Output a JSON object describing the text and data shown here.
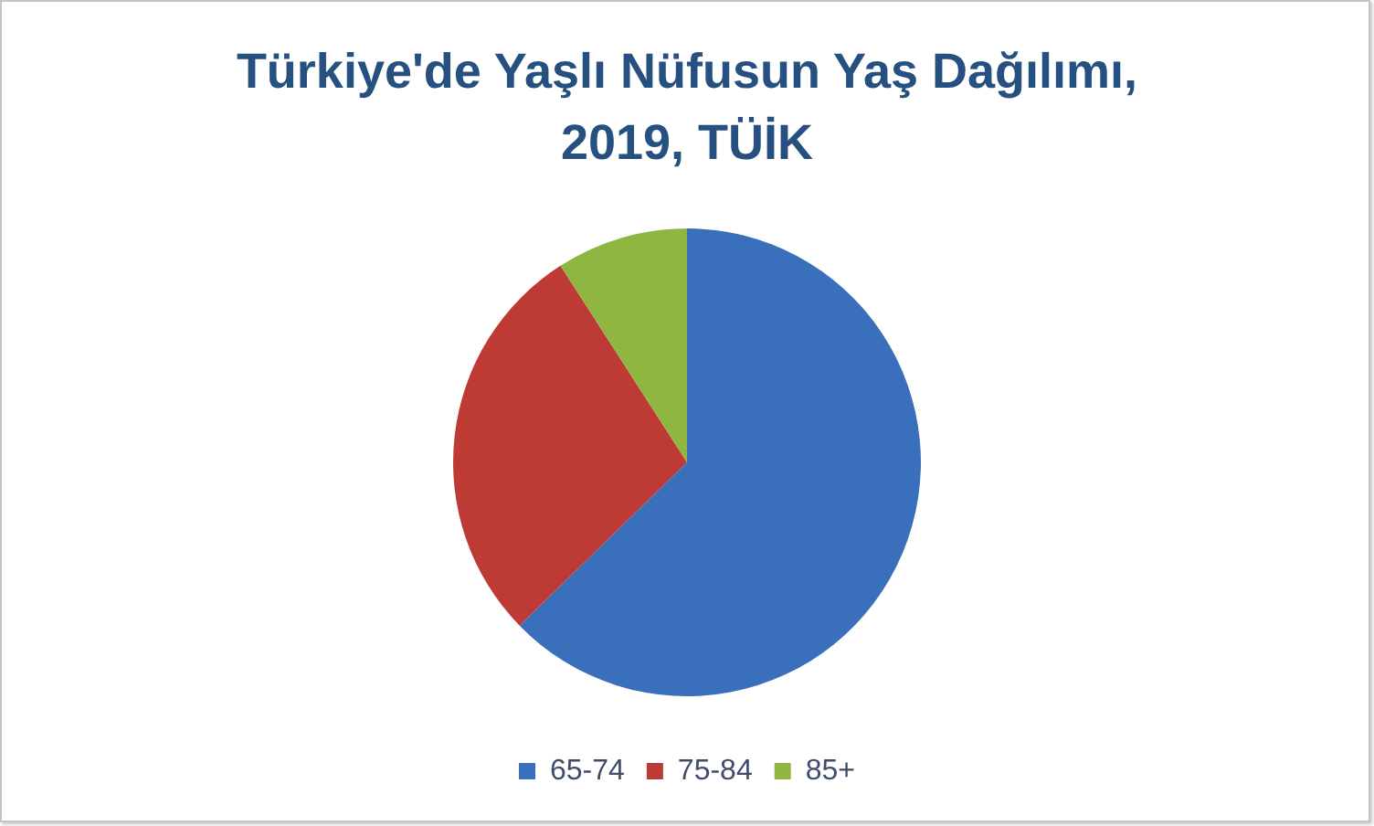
{
  "chart_data": {
    "type": "pie",
    "title": "Türkiye'de Yaşlı Nüfusun Yaş Dağılımı, 2019, TÜİK",
    "categories": [
      "65-74",
      "75-84",
      "85+"
    ],
    "values": [
      62.7,
      28.2,
      9.1
    ],
    "colors": [
      "#3a70bb",
      "#be3a34",
      "#8fb640"
    ],
    "legend": "bottom"
  }
}
